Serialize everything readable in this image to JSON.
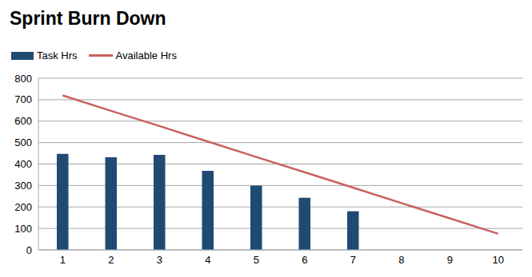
{
  "chart_data": {
    "type": "bar",
    "title": "Sprint Burn Down",
    "categories": [
      "1",
      "2",
      "3",
      "4",
      "5",
      "6",
      "7",
      "8",
      "9",
      "10"
    ],
    "series": [
      {
        "name": "Task Hrs",
        "type": "bar",
        "color": "#1f4a72",
        "values": [
          447,
          432,
          443,
          368,
          300,
          243,
          180,
          null,
          null,
          null
        ]
      },
      {
        "name": "Available Hrs",
        "type": "line",
        "color": "#c9615e",
        "values": [
          720,
          648,
          577,
          505,
          433,
          362,
          290,
          218,
          147,
          75
        ]
      }
    ],
    "ylim": [
      0,
      800
    ],
    "yticks": [
      0,
      100,
      200,
      300,
      400,
      500,
      600,
      700,
      800
    ],
    "grid": true,
    "legend": "top-left"
  }
}
